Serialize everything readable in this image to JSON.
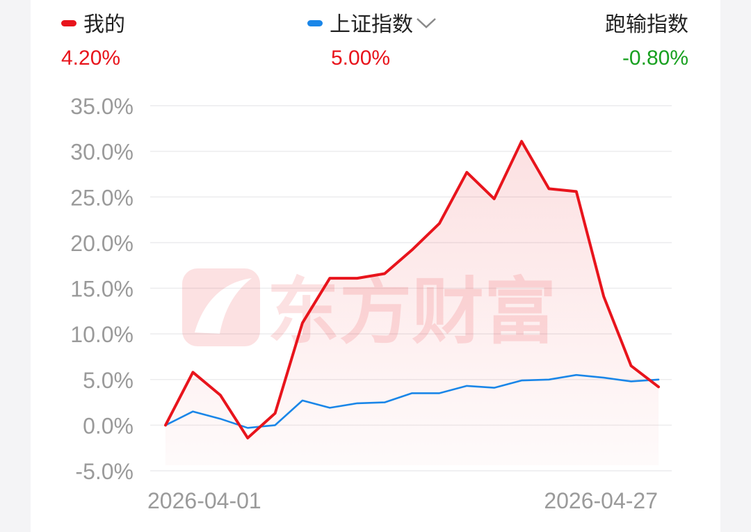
{
  "legend": [
    {
      "name": "我的",
      "value": "4.20%",
      "swatch_color": "#e8141c",
      "value_color": "#e8141c",
      "dropdown": false
    },
    {
      "name": "上证指数",
      "value": "5.00%",
      "swatch_color": "#1a86e8",
      "value_color": "#e8141c",
      "dropdown": true,
      "dropdown_icon": "chevron-down-icon"
    },
    {
      "name": "跑输指数",
      "value": "-0.80%",
      "swatch_color": null,
      "value_color": "#18a020",
      "dropdown": false
    }
  ],
  "watermark": {
    "text": "东方财富",
    "icon": "eastmoney-logo-icon"
  },
  "chart_data": {
    "type": "line",
    "x_tick_labels": [
      "2026-04-01",
      "2026-04-27"
    ],
    "y_tick_labels": [
      "35.0%",
      "30.0%",
      "25.0%",
      "20.0%",
      "15.0%",
      "10.0%",
      "5.0%",
      "0.0%",
      "-5.0%"
    ],
    "ylim": [
      -5,
      35
    ],
    "grid": true,
    "series": [
      {
        "name": "我的",
        "color": "#e8141c",
        "area_fill": true,
        "values": [
          0.0,
          5.8,
          3.3,
          -1.4,
          1.3,
          11.2,
          16.1,
          16.1,
          16.6,
          19.2,
          22.1,
          27.7,
          24.8,
          31.1,
          25.9,
          25.6,
          14.1,
          6.5,
          4.2
        ]
      },
      {
        "name": "上证指数",
        "color": "#1a86e8",
        "area_fill": false,
        "values": [
          0.0,
          1.5,
          0.7,
          -0.3,
          0.0,
          2.7,
          1.9,
          2.4,
          2.5,
          3.5,
          3.5,
          4.3,
          4.1,
          4.9,
          5.0,
          5.5,
          5.2,
          4.8,
          5.0
        ]
      }
    ]
  }
}
